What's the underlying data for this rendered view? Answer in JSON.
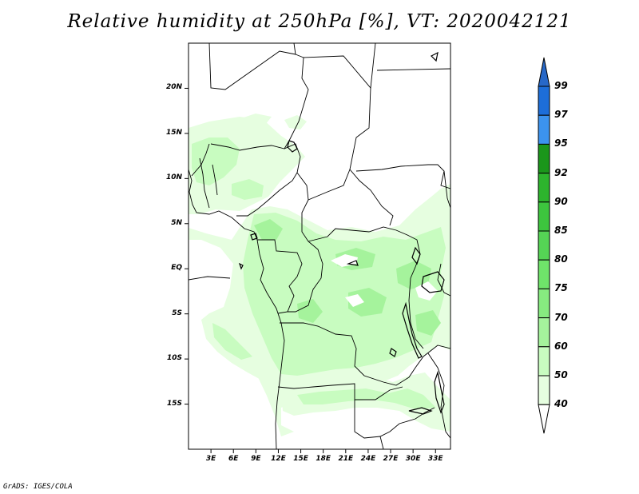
{
  "title": "Relative humidity at 250hPa [%], VT: 2020042121",
  "credit": "GrADS: IGES/COLA",
  "lat_labels": [
    "20N",
    "15N",
    "10N",
    "5N",
    "EQ",
    "5S",
    "10S",
    "15S"
  ],
  "lat_values": [
    20,
    15,
    10,
    5,
    0,
    -5,
    -10,
    -15
  ],
  "lon_labels": [
    "3E",
    "6E",
    "9E",
    "12E",
    "15E",
    "18E",
    "21E",
    "24E",
    "27E",
    "30E",
    "33E"
  ],
  "lon_values": [
    3,
    6,
    9,
    12,
    15,
    18,
    21,
    24,
    27,
    30,
    33
  ],
  "map_extent": {
    "lon_min": 0,
    "lon_max": 35,
    "lat_min": -20,
    "lat_max": 25
  },
  "colorbar": {
    "labels": [
      "99",
      "97",
      "95",
      "92",
      "90",
      "85",
      "80",
      "75",
      "70",
      "60",
      "50",
      "40"
    ],
    "levels": [
      40,
      50,
      60,
      70,
      75,
      80,
      85,
      90,
      92,
      95,
      97,
      99
    ],
    "colors": [
      "#ffffff",
      "#e6fee0",
      "#c8fcc0",
      "#a5f39c",
      "#87eb80",
      "#6fe46a",
      "#55d455",
      "#3dc53e",
      "#2db42d",
      "#1b961b",
      "#3c93ee",
      "#1d6ed9",
      "#2768c8"
    ]
  },
  "field_colors": {
    "c50": "#e6fee0",
    "c60": "#c8fcc0",
    "c70": "#a5f39c"
  }
}
